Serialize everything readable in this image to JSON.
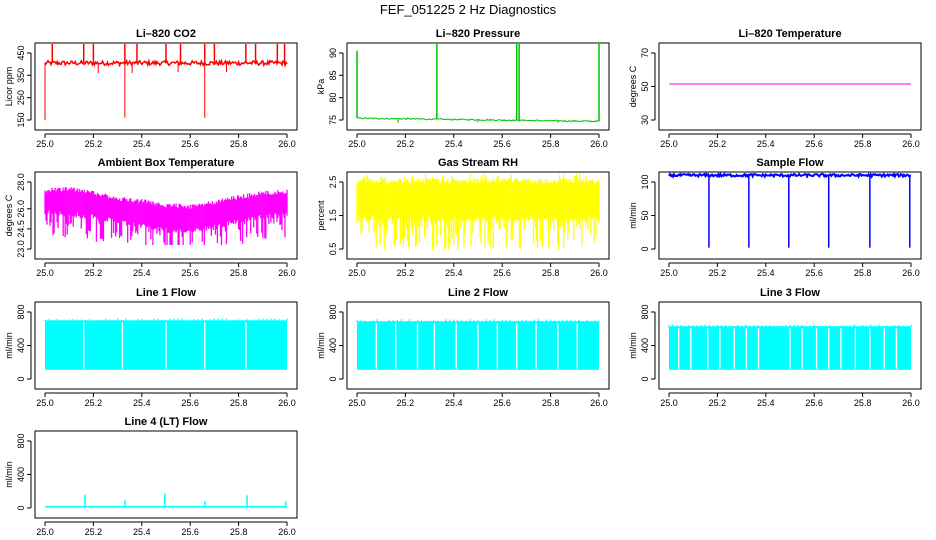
{
  "suptitle": "FEF_051225  2 Hz Diagnostics",
  "chart_data": [
    {
      "type": "line",
      "title": "Li–820 CO2",
      "ylabel": "Licor ppm",
      "color": "#ff0000",
      "xlim": [
        25.0,
        26.0
      ],
      "xticks": [
        "25.0",
        "25.2",
        "25.4",
        "25.6",
        "25.8",
        "26.0"
      ],
      "ylim": [
        150,
        450
      ],
      "yticks": [
        150,
        250,
        350,
        450
      ],
      "series": [
        {
          "name": "CO2",
          "baseline": 405,
          "band": [
            395,
            415
          ],
          "spikes_up": [
            [
              25.03,
              520
            ],
            [
              25.16,
              520
            ],
            [
              25.2,
              520
            ],
            [
              25.33,
              520
            ],
            [
              25.38,
              520
            ],
            [
              25.5,
              520
            ],
            [
              25.56,
              520
            ],
            [
              25.66,
              520
            ],
            [
              25.7,
              520
            ],
            [
              25.83,
              520
            ],
            [
              25.87,
              520
            ],
            [
              25.96,
              520
            ],
            [
              25.99,
              520
            ]
          ],
          "spikes_down": [
            [
              25.0,
              150
            ],
            [
              25.33,
              160
            ],
            [
              25.66,
              160
            ],
            [
              25.22,
              360
            ],
            [
              25.36,
              360
            ],
            [
              25.55,
              365
            ],
            [
              25.75,
              365
            ]
          ]
        }
      ]
    },
    {
      "type": "line",
      "title": "Li–820 Pressure",
      "ylabel": "kPa",
      "color": "#00c000",
      "xlim": [
        25.0,
        26.0
      ],
      "xticks": [
        "25.0",
        "25.2",
        "25.4",
        "25.6",
        "25.8",
        "26.0"
      ],
      "ylim": [
        75,
        90
      ],
      "yticks": [
        75,
        80,
        85,
        90
      ],
      "series": [
        {
          "name": "Pressure",
          "trend": [
            [
              25.0,
              75.4
            ],
            [
              26.0,
              74.7
            ]
          ],
          "spikes_up": [
            [
              25.0,
              90.5
            ],
            [
              25.33,
              93
            ],
            [
              25.66,
              93
            ],
            [
              25.67,
              93
            ],
            [
              26.0,
              92.2
            ]
          ],
          "spikes_down": [
            [
              25.17,
              74.4
            ],
            [
              25.5,
              74.5
            ],
            [
              25.83,
              74.4
            ]
          ]
        }
      ]
    },
    {
      "type": "line",
      "title": "Li–820 Temperature",
      "ylabel": "degrees C",
      "color": "#ff00ff",
      "xlim": [
        25.0,
        26.0
      ],
      "xticks": [
        "25.0",
        "25.2",
        "25.4",
        "25.6",
        "25.8",
        "26.0"
      ],
      "ylim": [
        30,
        70
      ],
      "yticks": [
        30,
        50,
        70
      ],
      "series": [
        {
          "name": "Temperature",
          "trend": [
            [
              25.0,
              51.5
            ],
            [
              26.0,
              51.5
            ]
          ]
        }
      ]
    },
    {
      "type": "line",
      "title": "Ambient Box Temperature",
      "ylabel": "degrees C",
      "color": "#ff00ff",
      "xlim": [
        25.0,
        26.0
      ],
      "xticks": [
        "25.0",
        "25.2",
        "25.4",
        "25.6",
        "25.8",
        "26.0"
      ],
      "ylim": [
        23,
        28
      ],
      "yticks": [
        "23.0",
        "24.5",
        "26.0",
        "28.0"
      ],
      "series": [
        {
          "name": "Box Temperature",
          "upper": [
            [
              25.0,
              27.2
            ],
            [
              25.1,
              27.3
            ],
            [
              25.2,
              27.0
            ],
            [
              25.3,
              26.6
            ],
            [
              25.4,
              26.4
            ],
            [
              25.5,
              26.1
            ],
            [
              25.6,
              26.0
            ],
            [
              25.7,
              26.3
            ],
            [
              25.8,
              26.7
            ],
            [
              25.9,
              27.0
            ],
            [
              26.0,
              27.1
            ]
          ],
          "lower": [
            [
              25.0,
              25.9
            ],
            [
              25.1,
              25.8
            ],
            [
              25.2,
              25.6
            ],
            [
              25.3,
              25.2
            ],
            [
              25.4,
              24.9
            ],
            [
              25.5,
              24.6
            ],
            [
              25.6,
              24.5
            ],
            [
              25.7,
              24.8
            ],
            [
              25.8,
              25.3
            ],
            [
              25.9,
              25.6
            ],
            [
              26.0,
              25.7
            ]
          ],
          "dip_min": 23.3
        }
      ]
    },
    {
      "type": "line",
      "title": "Gas Stream RH",
      "ylabel": "percent",
      "color": "#ffff00",
      "xlim": [
        25.0,
        26.0
      ],
      "xticks": [
        "25.0",
        "25.2",
        "25.4",
        "25.6",
        "25.8",
        "26.0"
      ],
      "ylim": [
        0.5,
        2.5
      ],
      "yticks": [
        "0.5",
        "1.5",
        "2.5"
      ],
      "series": [
        {
          "name": "RH",
          "band": [
            1.5,
            2.6
          ],
          "high": 2.8,
          "dip_min": 0.45
        }
      ]
    },
    {
      "type": "line",
      "title": "Sample Flow",
      "ylabel": "ml/min",
      "color": "#0000ff",
      "xlim": [
        25.0,
        26.0
      ],
      "xticks": [
        "25.0",
        "25.2",
        "25.4",
        "25.6",
        "25.8",
        "26.0"
      ],
      "ylim": [
        0,
        100
      ],
      "yticks": [
        0,
        50,
        100
      ],
      "series": [
        {
          "name": "Sample Flow",
          "baseline": 110,
          "dips": [
            [
              25.165,
              2
            ],
            [
              25.33,
              2
            ],
            [
              25.495,
              2
            ],
            [
              25.66,
              2
            ],
            [
              25.83,
              2
            ],
            [
              25.995,
              2
            ]
          ]
        }
      ]
    },
    {
      "type": "line",
      "title": "Line 1 Flow",
      "ylabel": "ml/min",
      "color": "#00ffff",
      "xlim": [
        25.0,
        26.0
      ],
      "xticks": [
        "25.0",
        "25.2",
        "25.4",
        "25.6",
        "25.8",
        "26.0"
      ],
      "ylim": [
        0,
        800
      ],
      "yticks": [
        0,
        400,
        800
      ],
      "series": [
        {
          "name": "Line 1",
          "high": 700,
          "low": 110,
          "gaps": [
            25.16,
            25.32,
            25.5,
            25.66,
            25.83
          ]
        }
      ]
    },
    {
      "type": "line",
      "title": "Line 2 Flow",
      "ylabel": "ml/min",
      "color": "#00ffff",
      "xlim": [
        25.0,
        26.0
      ],
      "xticks": [
        "25.0",
        "25.2",
        "25.4",
        "25.6",
        "25.8",
        "26.0"
      ],
      "ylim": [
        0,
        800
      ],
      "yticks": [
        0,
        400,
        800
      ],
      "series": [
        {
          "name": "Line 2",
          "high": 690,
          "low": 110,
          "gaps": [
            25.08,
            25.16,
            25.25,
            25.32,
            25.41,
            25.5,
            25.58,
            25.66,
            25.74,
            25.83,
            25.91
          ]
        }
      ]
    },
    {
      "type": "line",
      "title": "Line 3 Flow",
      "ylabel": "ml/min",
      "color": "#00ffff",
      "xlim": [
        25.0,
        26.0
      ],
      "xticks": [
        "25.0",
        "25.2",
        "25.4",
        "25.6",
        "25.8",
        "26.0"
      ],
      "ylim": [
        0,
        800
      ],
      "yticks": [
        0,
        400,
        800
      ],
      "series": [
        {
          "name": "Line 3",
          "high": 630,
          "low": 110,
          "gaps": [
            25.04,
            25.09,
            25.16,
            25.21,
            25.27,
            25.32,
            25.37,
            25.5,
            25.55,
            25.61,
            25.66,
            25.71,
            25.77,
            25.83,
            25.89,
            25.94
          ]
        }
      ]
    },
    {
      "type": "line",
      "title": "Line 4 (LT) Flow",
      "ylabel": "ml/min",
      "color": "#00ffff",
      "xlim": [
        25.0,
        26.0
      ],
      "xticks": [
        "25.0",
        "25.2",
        "25.4",
        "25.6",
        "25.8",
        "26.0"
      ],
      "ylim": [
        0,
        800
      ],
      "yticks": [
        0,
        400,
        800
      ],
      "series": [
        {
          "name": "Line 4",
          "baseline": 15,
          "spikes_up": [
            [
              25.165,
              160
            ],
            [
              25.33,
              90
            ],
            [
              25.495,
              170
            ],
            [
              25.66,
              80
            ],
            [
              25.835,
              150
            ],
            [
              25.995,
              80
            ]
          ]
        }
      ]
    }
  ]
}
